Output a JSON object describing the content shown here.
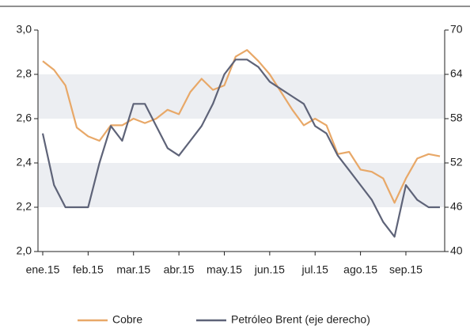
{
  "chart_data": {
    "type": "line",
    "categories": [
      "ene.15",
      null,
      null,
      null,
      "feb.15",
      null,
      null,
      null,
      "mar.15",
      null,
      null,
      null,
      "abr.15",
      null,
      null,
      null,
      "may.15",
      null,
      null,
      null,
      "jun.15",
      null,
      null,
      null,
      "jul.15",
      null,
      null,
      null,
      "ago.15",
      null,
      null,
      null,
      "sep.15",
      null,
      null,
      null
    ],
    "series": [
      {
        "name": "Cobre",
        "color": "#e8a868",
        "axis": "y",
        "values": [
          2.86,
          2.82,
          2.75,
          2.56,
          2.52,
          2.5,
          2.57,
          2.57,
          2.6,
          2.58,
          2.6,
          2.64,
          2.62,
          2.72,
          2.78,
          2.73,
          2.75,
          2.88,
          2.91,
          2.86,
          2.8,
          2.72,
          2.64,
          2.57,
          2.6,
          2.57,
          2.44,
          2.45,
          2.37,
          2.36,
          2.33,
          2.22,
          2.33,
          2.42,
          2.44,
          2.43
        ]
      },
      {
        "name": "Petróleo Brent (eje derecho)",
        "color": "#5e6378",
        "axis": "y2",
        "values": [
          56,
          49,
          46,
          46,
          46,
          52,
          57,
          55,
          60,
          60,
          57,
          54,
          53,
          55,
          57,
          60,
          64,
          66,
          66,
          65,
          63,
          62,
          61,
          60,
          57,
          56,
          53,
          51,
          49,
          47,
          44,
          42,
          49,
          47,
          46,
          46
        ]
      }
    ],
    "ylim": [
      2.0,
      3.0
    ],
    "yticks": [
      {
        "value": 2.0,
        "label": "2,0"
      },
      {
        "value": 2.2,
        "label": "2,2"
      },
      {
        "value": 2.4,
        "label": "2,4"
      },
      {
        "value": 2.6,
        "label": "2,6"
      },
      {
        "value": 2.8,
        "label": "2,8"
      },
      {
        "value": 3.0,
        "label": "3,0"
      }
    ],
    "y2lim": [
      40,
      70
    ],
    "y2ticks": [
      40,
      46,
      52,
      58,
      64,
      70
    ],
    "grid": "bands",
    "legend": "bottom"
  }
}
